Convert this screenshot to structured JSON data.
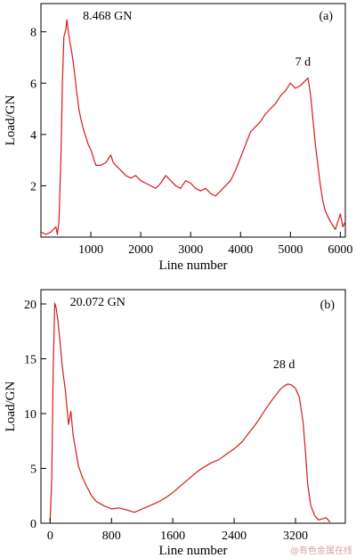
{
  "colors": {
    "line": "#d61a1a",
    "axis": "#000000",
    "watermark": "#d8a0a0"
  },
  "watermark": "@有色金属在线",
  "chart_data": [
    {
      "type": "line",
      "panel_label": "(a)",
      "xlabel": "Line number",
      "ylabel": "Load/GN",
      "xlim": [
        0,
        6100
      ],
      "ylim": [
        0,
        9.1
      ],
      "xticks": [
        1000,
        2000,
        3000,
        4000,
        5000,
        6000
      ],
      "yticks": [
        2,
        4,
        6,
        8
      ],
      "grid": false,
      "annotations": [
        {
          "text": "8.468 GN",
          "x": 520,
          "y": 8.468
        },
        {
          "text": "7 d",
          "x": 5250,
          "y": 6.2
        }
      ],
      "series": [
        {
          "x": [
            0,
            100,
            200,
            300,
            330,
            360,
            400,
            430,
            460,
            500,
            520,
            550,
            580,
            610,
            640,
            680,
            720,
            760,
            800,
            850,
            900,
            950,
            1000,
            1100,
            1200,
            1300,
            1400,
            1450,
            1500,
            1600,
            1700,
            1800,
            1900,
            2000,
            2100,
            2200,
            2300,
            2400,
            2500,
            2600,
            2700,
            2800,
            2900,
            3000,
            3100,
            3200,
            3300,
            3400,
            3500,
            3600,
            3700,
            3800,
            3900,
            4000,
            4100,
            4200,
            4300,
            4400,
            4500,
            4600,
            4700,
            4800,
            4900,
            5000,
            5100,
            5200,
            5300,
            5350,
            5400,
            5450,
            5500,
            5550,
            5600,
            5650,
            5700,
            5800,
            5900,
            6000,
            6050,
            6100
          ],
          "y": [
            0.2,
            0.1,
            0.2,
            0.4,
            0.1,
            0.6,
            3.0,
            6.0,
            7.8,
            8.1,
            8.468,
            8.0,
            7.6,
            7.3,
            6.9,
            6.3,
            5.6,
            5.0,
            4.6,
            4.2,
            3.9,
            3.6,
            3.4,
            2.8,
            2.8,
            2.9,
            3.2,
            2.9,
            2.8,
            2.6,
            2.4,
            2.3,
            2.4,
            2.2,
            2.1,
            2.0,
            1.9,
            2.1,
            2.4,
            2.2,
            2.0,
            1.9,
            2.2,
            2.1,
            1.9,
            1.8,
            1.9,
            1.7,
            1.6,
            1.8,
            2.0,
            2.2,
            2.6,
            3.1,
            3.6,
            4.1,
            4.3,
            4.5,
            4.8,
            5.0,
            5.2,
            5.5,
            5.7,
            6.0,
            5.8,
            5.9,
            6.1,
            6.2,
            5.6,
            4.6,
            3.6,
            2.8,
            2.0,
            1.4,
            1.0,
            0.6,
            0.3,
            0.9,
            0.4,
            0.6
          ]
        }
      ]
    },
    {
      "type": "line",
      "panel_label": "(b)",
      "xlabel": "Line number",
      "ylabel": "Load/GN",
      "xlim": [
        -120,
        3850
      ],
      "ylim": [
        0,
        21.3
      ],
      "xticks": [
        0,
        800,
        1600,
        2400,
        3200
      ],
      "yticks": [
        0,
        5,
        10,
        15,
        20
      ],
      "grid": false,
      "annotations": [
        {
          "text": "20.072 GN",
          "x": 50,
          "y": 20.072
        },
        {
          "text": "28 d",
          "x": 3050,
          "y": 13.0
        }
      ],
      "series": [
        {
          "x": [
            0,
            20,
            40,
            60,
            80,
            100,
            130,
            160,
            200,
            240,
            270,
            300,
            330,
            370,
            420,
            480,
            540,
            600,
            700,
            800,
            900,
            1000,
            1100,
            1200,
            1300,
            1400,
            1500,
            1600,
            1700,
            1800,
            1900,
            2000,
            2100,
            2200,
            2300,
            2400,
            2500,
            2600,
            2700,
            2800,
            2900,
            3000,
            3050,
            3100,
            3150,
            3200,
            3250,
            3300,
            3330,
            3360,
            3400,
            3450,
            3500,
            3550,
            3600,
            3650
          ],
          "y": [
            0.2,
            4.0,
            14.0,
            20.072,
            19.6,
            18.5,
            16.5,
            14.2,
            12.0,
            9.0,
            10.2,
            8.0,
            6.8,
            5.2,
            4.2,
            3.3,
            2.5,
            2.0,
            1.6,
            1.3,
            1.4,
            1.2,
            1.0,
            1.3,
            1.6,
            1.9,
            2.3,
            2.8,
            3.4,
            4.0,
            4.6,
            5.1,
            5.5,
            5.8,
            6.3,
            6.8,
            7.4,
            8.3,
            9.2,
            10.3,
            11.3,
            12.2,
            12.5,
            12.7,
            12.6,
            12.3,
            11.5,
            9.2,
            6.5,
            3.5,
            1.6,
            0.7,
            0.3,
            0.4,
            0.5,
            0.1
          ]
        }
      ]
    }
  ]
}
